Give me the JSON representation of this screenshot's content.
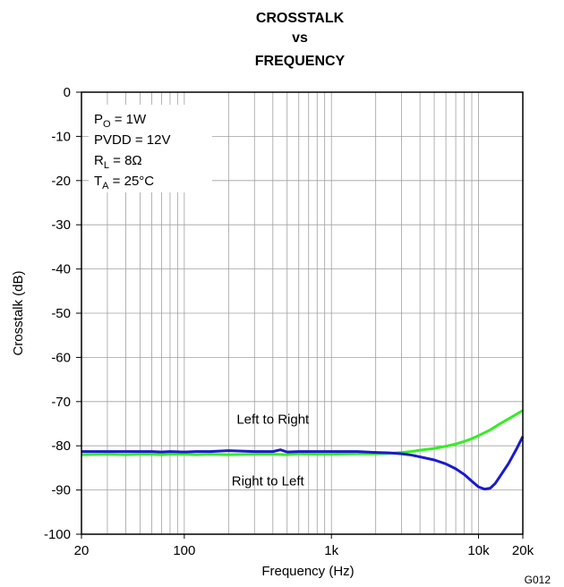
{
  "chart_data": {
    "type": "line",
    "title_lines": [
      "CROSSTALK",
      "vs",
      "FREQUENCY"
    ],
    "xlabel": "Frequency (Hz)",
    "ylabel": "Crosstalk (dB)",
    "x_scale": "log",
    "xlim": [
      20,
      20000
    ],
    "ylim": [
      -100,
      0
    ],
    "grid": true,
    "x_ticks": [
      {
        "value": 20,
        "label": "20"
      },
      {
        "value": 100,
        "label": "100"
      },
      {
        "value": 1000,
        "label": "1k"
      },
      {
        "value": 10000,
        "label": "10k"
      },
      {
        "value": 20000,
        "label": "20k"
      }
    ],
    "y_ticks": [
      0,
      -10,
      -20,
      -30,
      -40,
      -50,
      -60,
      -70,
      -80,
      -90,
      -100
    ],
    "conditions": [
      {
        "main": "P",
        "sub": "O",
        "rest": " = 1W"
      },
      {
        "main": "PVDD = 12V",
        "sub": "",
        "rest": ""
      },
      {
        "main": "R",
        "sub": "L",
        "rest": " = 8Ω"
      },
      {
        "main": "T",
        "sub": "A",
        "rest": " = 25°C"
      }
    ],
    "annotations": [
      {
        "text": "Left to Right",
        "x": 400,
        "y": -74
      },
      {
        "text": "Right to Left",
        "x": 370,
        "y": -88
      }
    ],
    "figure_code": "G012",
    "series": [
      {
        "name": "Left to Right",
        "color": "#33ee22",
        "x": [
          20,
          30,
          40,
          50,
          60,
          70,
          80,
          100,
          120,
          150,
          200,
          300,
          400,
          500,
          600,
          800,
          1000,
          1500,
          2000,
          2500,
          3000,
          3500,
          4000,
          5000,
          6000,
          7000,
          8000,
          9000,
          10000,
          12000,
          14000,
          16000,
          18000,
          20000
        ],
        "y": [
          -82.0,
          -81.9,
          -82.0,
          -81.9,
          -81.9,
          -82.0,
          -81.9,
          -81.9,
          -82.0,
          -81.9,
          -82.0,
          -81.9,
          -81.9,
          -82.0,
          -81.8,
          -81.9,
          -81.9,
          -81.8,
          -81.8,
          -81.7,
          -81.5,
          -81.3,
          -81.0,
          -80.6,
          -80.1,
          -79.6,
          -79.0,
          -78.4,
          -77.7,
          -76.4,
          -75.0,
          -73.9,
          -72.9,
          -72.0
        ]
      },
      {
        "name": "Right to Left",
        "color": "#1a1acc",
        "x": [
          20,
          30,
          40,
          50,
          60,
          70,
          80,
          100,
          120,
          150,
          200,
          300,
          400,
          450,
          500,
          600,
          800,
          1000,
          1500,
          2000,
          2500,
          3000,
          3500,
          4000,
          5000,
          6000,
          7000,
          8000,
          9000,
          10000,
          11000,
          12000,
          13000,
          14000,
          16000,
          18000,
          20000
        ],
        "y": [
          -81.3,
          -81.3,
          -81.3,
          -81.3,
          -81.3,
          -81.4,
          -81.3,
          -81.4,
          -81.3,
          -81.3,
          -81.1,
          -81.3,
          -81.3,
          -80.9,
          -81.4,
          -81.3,
          -81.3,
          -81.3,
          -81.3,
          -81.5,
          -81.6,
          -81.8,
          -82.1,
          -82.5,
          -83.2,
          -84.1,
          -85.2,
          -86.5,
          -88.0,
          -89.3,
          -89.8,
          -89.6,
          -88.5,
          -86.9,
          -84.0,
          -80.9,
          -77.9
        ]
      }
    ]
  }
}
